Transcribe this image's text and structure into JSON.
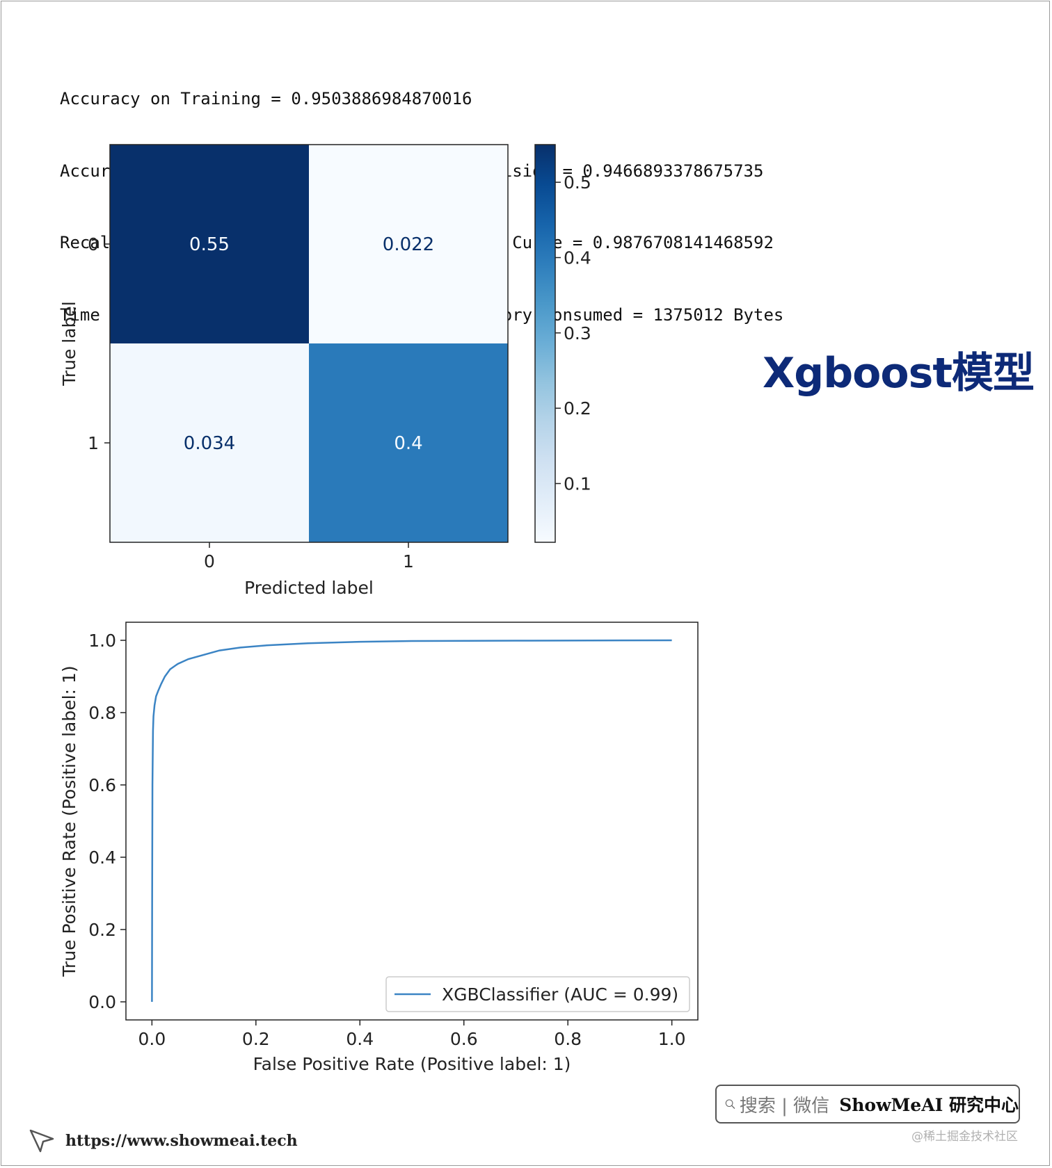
{
  "metrics": {
    "line1": "Accuracy on Training = 0.9503886984870016",
    "line2": "Accuracy on Test = 0.9438042157314671 • Precision = 0.9466893378675735",
    "line3": "Recall = 0.9213472208702423 • ROC Area under Curve = 0.9876708141468592",
    "line4": "Time taken = 5.126989126205444 seconds • Memory consumed = 1375012 Bytes"
  },
  "side_title": "Xgboost模型",
  "brand": {
    "search_text": "搜索 | 微信",
    "name": "ShowMeAI 研究中心",
    "url": "https://www.showmeai.tech",
    "watermark": "@稀土掘金技术社区"
  },
  "colors": {
    "cm_dark": "#08306b",
    "cm_mid": "#2a7bbf",
    "cm_light": "#f5fafe",
    "roc_line": "#3b84c4",
    "title_color": "#0d2a78"
  },
  "chart_data": [
    {
      "type": "heatmap",
      "x_categories": [
        "0",
        "1"
      ],
      "y_categories": [
        "0",
        "1"
      ],
      "values": [
        [
          0.55,
          0.022
        ],
        [
          0.034,
          0.4
        ]
      ],
      "cell_labels": [
        [
          "0.55",
          "0.022"
        ],
        [
          "0.034",
          "0.4"
        ]
      ],
      "xlabel": "Predicted label",
      "ylabel": "True label",
      "colorbar": {
        "min": 0.022,
        "max": 0.55,
        "ticks": [
          "0.1",
          "0.2",
          "0.3",
          "0.4",
          "0.5"
        ],
        "colormap": "Blues"
      }
    },
    {
      "type": "line",
      "xlabel": "False Positive Rate (Positive label: 1)",
      "ylabel": "True Positive Rate (Positive label: 1)",
      "xlim": [
        -0.05,
        1.05
      ],
      "ylim": [
        -0.05,
        1.05
      ],
      "x_ticks": [
        "0.0",
        "0.2",
        "0.4",
        "0.6",
        "0.8",
        "1.0"
      ],
      "y_ticks": [
        "0.0",
        "0.2",
        "0.4",
        "0.6",
        "0.8",
        "1.0"
      ],
      "legend": "lower-right",
      "series": [
        {
          "name": "XGBClassifier (AUC = 0.99)",
          "x": [
            0,
            0.0005,
            0.001,
            0.002,
            0.003,
            0.005,
            0.008,
            0.012,
            0.018,
            0.025,
            0.035,
            0.05,
            0.07,
            0.1,
            0.13,
            0.17,
            0.22,
            0.3,
            0.4,
            0.5,
            0.7,
            1.0
          ],
          "y": [
            0,
            0.3,
            0.6,
            0.75,
            0.79,
            0.82,
            0.845,
            0.86,
            0.88,
            0.9,
            0.92,
            0.935,
            0.948,
            0.96,
            0.972,
            0.98,
            0.986,
            0.992,
            0.996,
            0.998,
            0.999,
            1.0
          ]
        }
      ]
    }
  ]
}
